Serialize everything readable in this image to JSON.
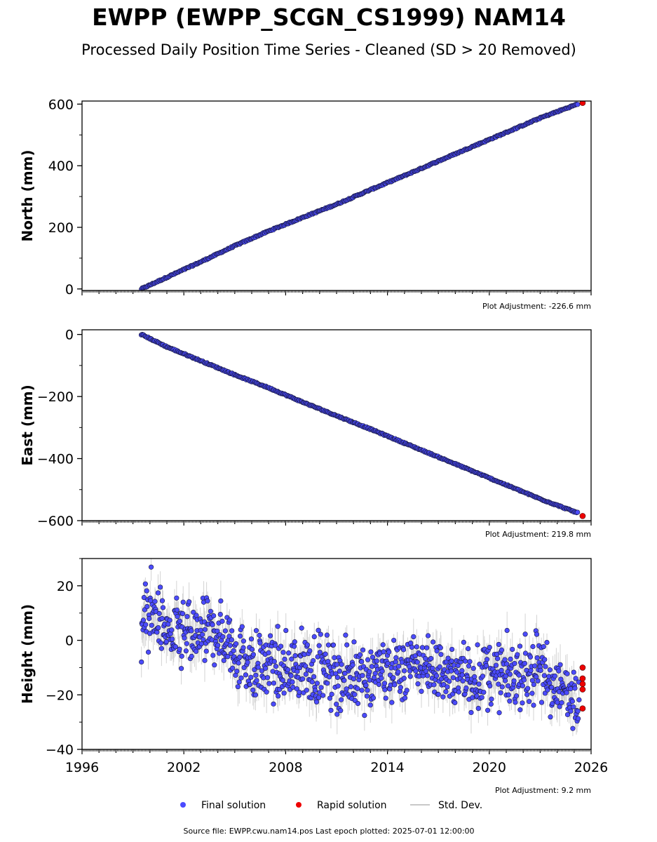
{
  "title": "EWPP (EWPP_SCGN_CS1999) NAM14",
  "subtitle": "Processed Daily Position Time Series - Cleaned (SD > 20 Removed)",
  "footer": "Source file: EWPP.cwu.nam14.pos  Last epoch plotted: 2025-07-01 12:00:00",
  "legend": {
    "final": "Final solution",
    "rapid": "Rapid solution",
    "std": "Std. Dev."
  },
  "colors": {
    "final": "#4b4bff",
    "rapid": "#ee0000",
    "std": "#c8c8c8"
  },
  "chart_data": [
    {
      "type": "scatter",
      "ylabel": "North (mm)",
      "adjustment": "Plot Adjustment: -226.6 mm",
      "xlim": [
        1996,
        2026
      ],
      "ylim": [
        -5,
        610
      ],
      "yticks": [
        0,
        200,
        400,
        600
      ],
      "xticks": [],
      "series": [
        {
          "name": "Final solution",
          "x": [
            1999.5,
            2001,
            2003,
            2005,
            2007,
            2009,
            2011,
            2013,
            2015,
            2017,
            2019,
            2021,
            2023,
            2025.2
          ],
          "y": [
            0,
            38,
            88,
            140,
            188,
            232,
            275,
            322,
            368,
            415,
            462,
            508,
            555,
            600
          ]
        },
        {
          "name": "Rapid solution",
          "x": [
            2025.5
          ],
          "y": [
            604
          ]
        }
      ]
    },
    {
      "type": "scatter",
      "ylabel": "East (mm)",
      "adjustment": "Plot Adjustment: 219.8 mm",
      "xlim": [
        1996,
        2026
      ],
      "ylim": [
        -600,
        15
      ],
      "yticks": [
        0,
        -200,
        -400,
        -600
      ],
      "xticks": [],
      "series": [
        {
          "name": "Final solution",
          "x": [
            1999.5,
            2001,
            2003,
            2005,
            2007,
            2009,
            2011,
            2013,
            2015,
            2017,
            2019,
            2021,
            2023,
            2025.2
          ],
          "y": [
            0,
            -40,
            -85,
            -130,
            -172,
            -218,
            -262,
            -305,
            -350,
            -395,
            -440,
            -485,
            -530,
            -575
          ]
        },
        {
          "name": "Rapid solution",
          "x": [
            2025.5
          ],
          "y": [
            -585
          ]
        }
      ]
    },
    {
      "type": "scatter",
      "ylabel": "Height (mm)",
      "adjustment": "Plot Adjustment: 9.2 mm",
      "xlim": [
        1996,
        2026
      ],
      "ylim": [
        -40,
        30
      ],
      "yticks": [
        20,
        0,
        -20,
        -40
      ],
      "xticks": [
        1996,
        2002,
        2008,
        2014,
        2020,
        2026
      ],
      "series": [
        {
          "name": "Final solution",
          "x": [
            1999.5,
            2000,
            2001,
            2002,
            2003,
            2004,
            2005,
            2006,
            2007,
            2008,
            2009,
            2010,
            2011,
            2012,
            2013,
            2014,
            2015,
            2016,
            2017,
            2018,
            2019,
            2020,
            2021,
            2022,
            2023,
            2024,
            2025,
            2025.3
          ],
          "y": [
            5,
            12,
            3,
            1,
            2,
            3,
            -3,
            -9,
            -10,
            -11,
            -10,
            -11,
            -13,
            -13,
            -12,
            -11,
            -10,
            -8,
            -11,
            -14,
            -14,
            -13,
            -13,
            -12,
            -11,
            -18,
            -20,
            -17
          ]
        },
        {
          "name": "Rapid solution",
          "x": [
            2025.5,
            2025.5,
            2025.5,
            2025.5,
            2025.5
          ],
          "y": [
            -10,
            -14,
            -16,
            -18,
            -25
          ]
        }
      ]
    }
  ]
}
